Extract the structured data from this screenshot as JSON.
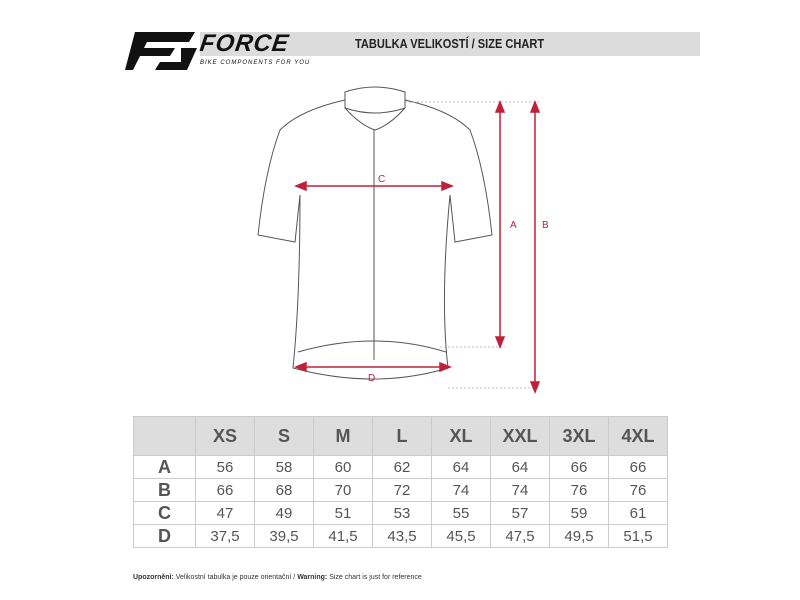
{
  "header": {
    "brand": "FORCE",
    "tagline": "BIKE COMPONENTS FOR YOU",
    "title": "TABULKA VELIKOSTÍ / SIZE CHART"
  },
  "diagram": {
    "labels": {
      "a": "A",
      "b": "B",
      "c": "C",
      "d": "D"
    },
    "arrow_color": "#c0213a"
  },
  "table": {
    "sizes": [
      "XS",
      "S",
      "M",
      "L",
      "XL",
      "XXL",
      "3XL",
      "4XL"
    ],
    "rows": [
      {
        "label": "A",
        "values": [
          "56",
          "58",
          "60",
          "62",
          "64",
          "64",
          "66",
          "66"
        ]
      },
      {
        "label": "B",
        "values": [
          "66",
          "68",
          "70",
          "72",
          "74",
          "74",
          "76",
          "76"
        ]
      },
      {
        "label": "C",
        "values": [
          "47",
          "49",
          "51",
          "53",
          "55",
          "57",
          "59",
          "61"
        ]
      },
      {
        "label": "D",
        "values": [
          "37,5",
          "39,5",
          "41,5",
          "43,5",
          "45,5",
          "47,5",
          "49,5",
          "51,5"
        ]
      }
    ]
  },
  "footer": {
    "warn_cz_label": "Upozornění:",
    "warn_cz": " Velikostní tabulka je pouze orientační / ",
    "warn_en_label": "Warning:",
    "warn_en": " Size chart is just for reference"
  }
}
